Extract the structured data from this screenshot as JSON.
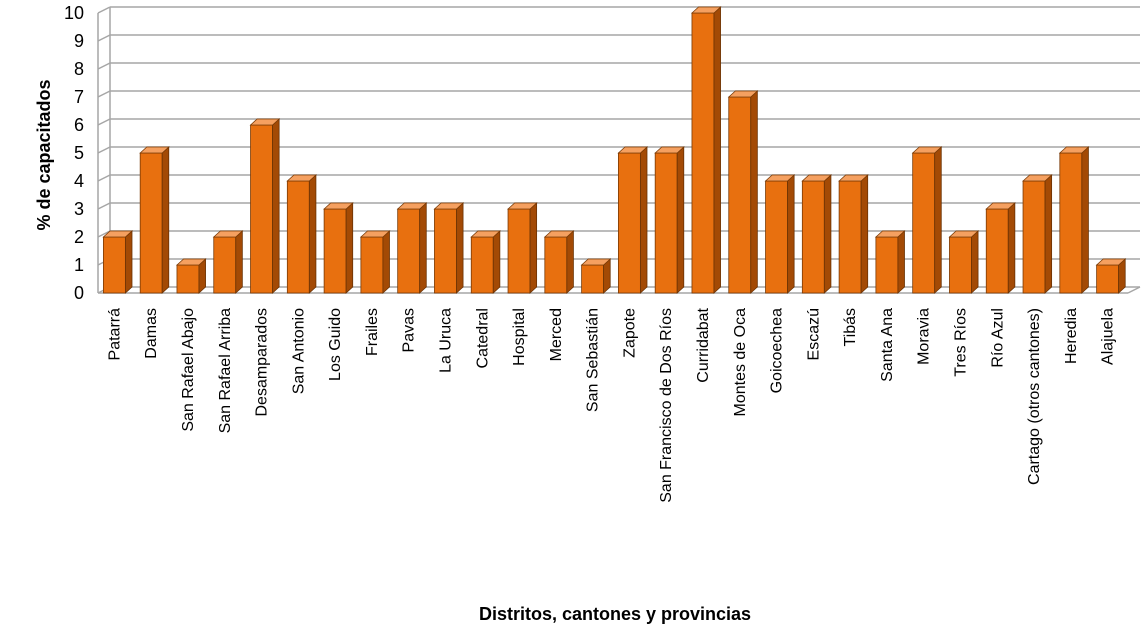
{
  "chart_data": {
    "type": "bar",
    "title": "",
    "xlabel": "Distritos, cantones y provincias",
    "ylabel": "% de capacitados",
    "ylim": [
      0,
      10
    ],
    "yticks": [
      0,
      1,
      2,
      3,
      4,
      5,
      6,
      7,
      8,
      9,
      10
    ],
    "grid": true,
    "legend": "none",
    "categories": [
      "Patarrá",
      "Damas",
      "San Rafael Abajo",
      "San Rafael Arriba",
      "Desamparados",
      "San Antonio",
      "Los Guido",
      "Frailes",
      "Pavas",
      "La Uruca",
      "Catedral",
      "Hospital",
      "Merced",
      "San Sebastián",
      "Zapote",
      "San Francisco de Dos Ríos",
      "Curridabat",
      "Montes de Oca",
      "Goicoechea",
      "Escazú",
      "Tibás",
      "Santa Ana",
      "Moravia",
      "Tres Ríos",
      "Río Azul",
      "Cartago (otros cantones)",
      "Heredia",
      "Alajuela"
    ],
    "values": [
      2,
      5,
      1,
      2,
      6,
      4,
      3,
      2,
      3,
      3,
      2,
      3,
      2,
      1,
      5,
      5,
      10,
      7,
      4,
      4,
      4,
      2,
      5,
      2,
      3,
      4,
      5,
      1
    ],
    "colors": {
      "bar_front": "#e8700f",
      "bar_side": "#a34a05",
      "bar_top": "#f5a060",
      "grid": "#a6a6a6"
    }
  }
}
